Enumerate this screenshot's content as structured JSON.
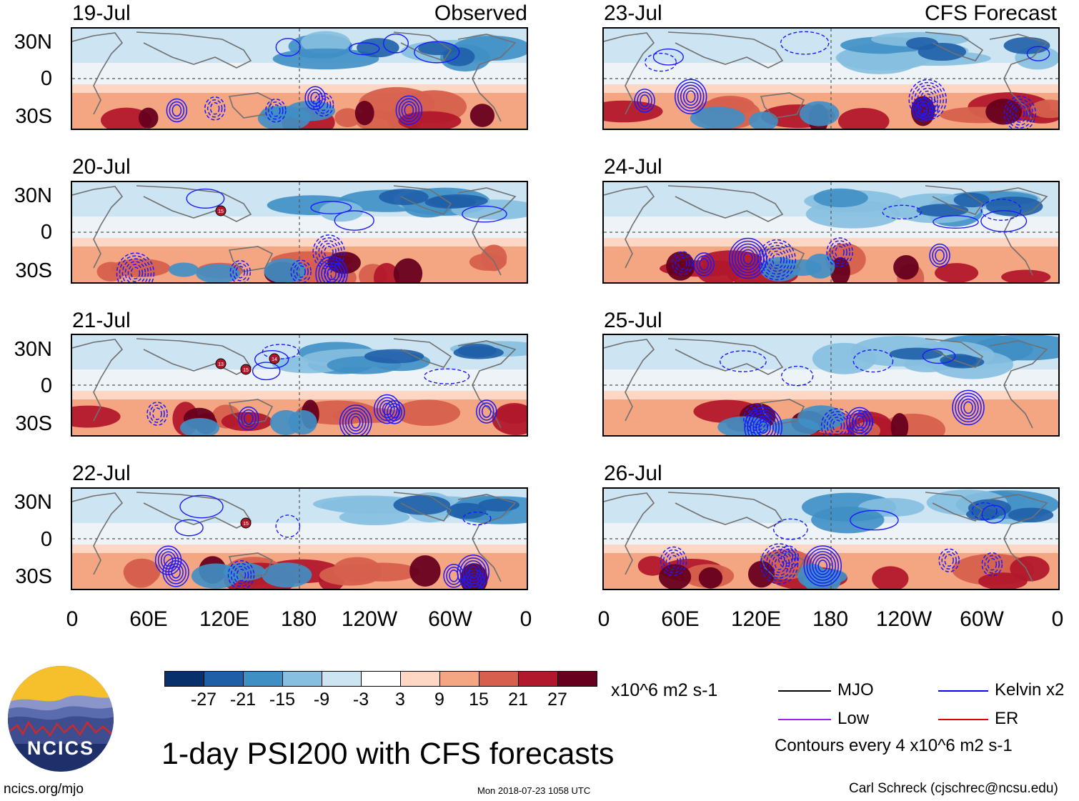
{
  "title": "1-day PSI200 with CFS forecasts",
  "observed_label": "Observed",
  "forecast_label": "CFS Forecast",
  "observed_dates": [
    "19-Jul",
    "20-Jul",
    "21-Jul",
    "22-Jul"
  ],
  "forecast_dates": [
    "23-Jul",
    "24-Jul",
    "25-Jul",
    "26-Jul"
  ],
  "lat_labels": [
    "30N",
    "0",
    "30S"
  ],
  "lon_labels": [
    "0",
    "60E",
    "120E",
    "180",
    "120W",
    "60W",
    "0"
  ],
  "colorbar": {
    "units": "x10^6 m2 s-1",
    "tick_labels": [
      "-27",
      "-21",
      "-15",
      "-9",
      "-3",
      "3",
      "9",
      "15",
      "21",
      "27"
    ],
    "colors": [
      "#08306b",
      "#1f5fa8",
      "#3f8fc5",
      "#86bfe0",
      "#cde4f2",
      "#ffffff",
      "#fdd7c4",
      "#f4a582",
      "#d6604d",
      "#b2182b",
      "#67001f"
    ]
  },
  "legend": {
    "items": [
      {
        "label": "MJO",
        "color": "#000000"
      },
      {
        "label": "Kelvin x2",
        "color": "#0000ff"
      },
      {
        "label": "Low",
        "color": "#a020f0"
      },
      {
        "label": "ER",
        "color": "#e00000"
      }
    ],
    "contour_note": "Contours every 4 x10^6 m2 s-1"
  },
  "tc_markers": {
    "20-Jul": [
      "15"
    ],
    "21-Jul": [
      "13",
      "15",
      "14"
    ],
    "22-Jul": [
      "15"
    ]
  },
  "footer": {
    "website": "ncics.org/mjo",
    "timestamp": "Mon 2018-07-23 1058 UTC",
    "author": "Carl Schreck (cjschrec@ncsu.edu)"
  },
  "logo": {
    "text": "NCICS",
    "colors": {
      "sun": "#f6c02c",
      "sky": "#1f2f6a",
      "hills": "#5b6cae",
      "ridge": "#cc2a2a"
    }
  }
}
